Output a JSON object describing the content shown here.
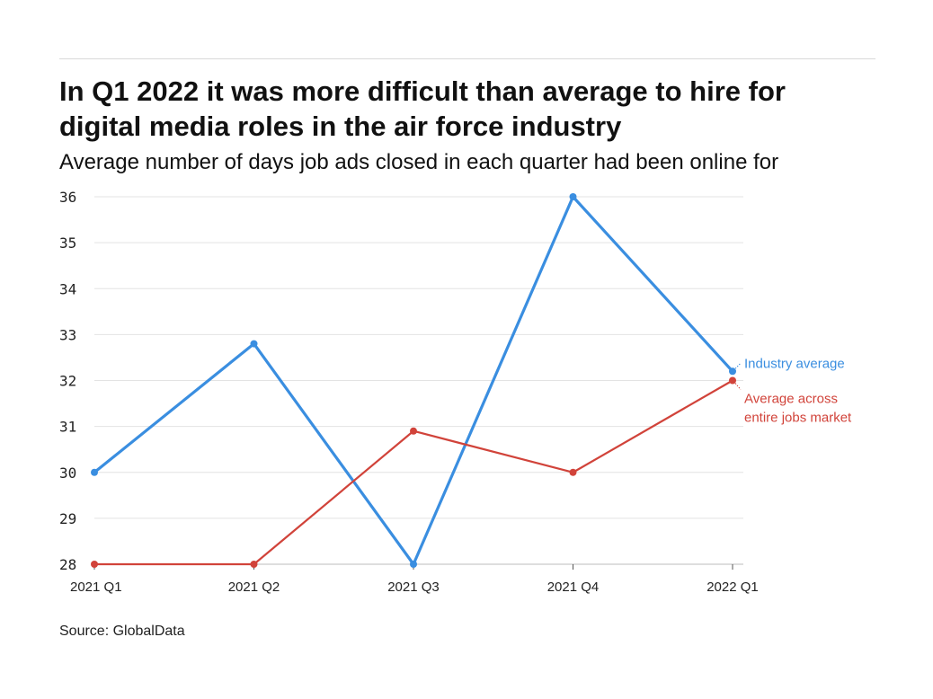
{
  "chart_data": {
    "type": "line",
    "title": "In Q1 2022 it was more difficult than average to hire for digital media roles in the air force industry",
    "subtitle": "Average number of days job ads closed in each quarter had been online for",
    "categories": [
      "2021 Q1",
      "2021 Q2",
      "2021 Q3",
      "2021 Q4",
      "2022 Q1"
    ],
    "yticks": [
      "28",
      "29",
      "30",
      "31",
      "32",
      "33",
      "34",
      "35",
      "36"
    ],
    "ylim": [
      28,
      36
    ],
    "xlabel": "",
    "ylabel": "",
    "grid": true,
    "series": [
      {
        "name": "Industry average",
        "label_lines": [
          "Industry average"
        ],
        "color": "#3a8ee0",
        "values": [
          30.0,
          32.8,
          28.0,
          36.0,
          32.2
        ]
      },
      {
        "name": "Average across entire jobs market",
        "label_lines": [
          "Average across",
          "entire jobs market"
        ],
        "color": "#d1433a",
        "values": [
          28.0,
          28.0,
          30.9,
          30.0,
          32.0
        ]
      }
    ]
  },
  "source": "Source: GlobalData"
}
